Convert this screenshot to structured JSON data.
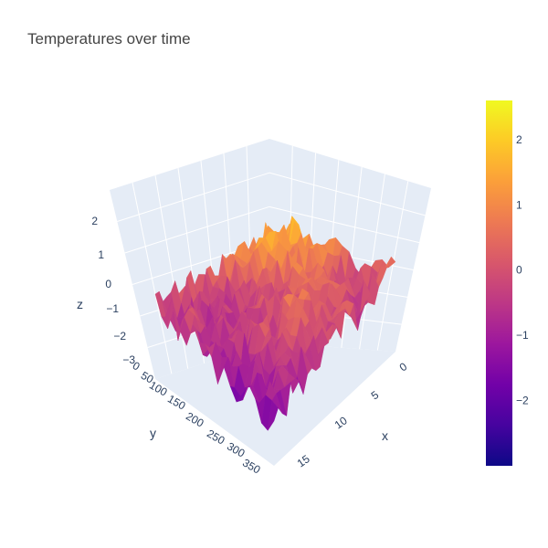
{
  "chart_data": {
    "type": "surface",
    "title": "Temperatures over time",
    "colorscale": "plasma",
    "colorscale_stops": [
      "#0d0887",
      "#46039f",
      "#7201a8",
      "#9c179e",
      "#bd3786",
      "#d8576b",
      "#ed7953",
      "#fb9f3a",
      "#fdca26",
      "#f0f921"
    ],
    "zlim": [
      -3,
      2.6
    ],
    "x_axis": {
      "label": "x",
      "ticks": [
        "0",
        "5",
        "10",
        "15"
      ],
      "range": [
        0,
        19
      ]
    },
    "y_axis": {
      "label": "y",
      "ticks": [
        "0",
        "50",
        "100",
        "150",
        "200",
        "250",
        "300",
        "350"
      ],
      "range": [
        0,
        365
      ]
    },
    "z_axis": {
      "label": "z",
      "ticks": [
        "−3",
        "−2",
        "−1",
        "0",
        "1",
        "2"
      ]
    },
    "colorbar": {
      "ticks": [
        "2",
        "1",
        "0",
        "−1",
        "−2"
      ]
    },
    "grid": true,
    "background": "#e5ecf6"
  }
}
